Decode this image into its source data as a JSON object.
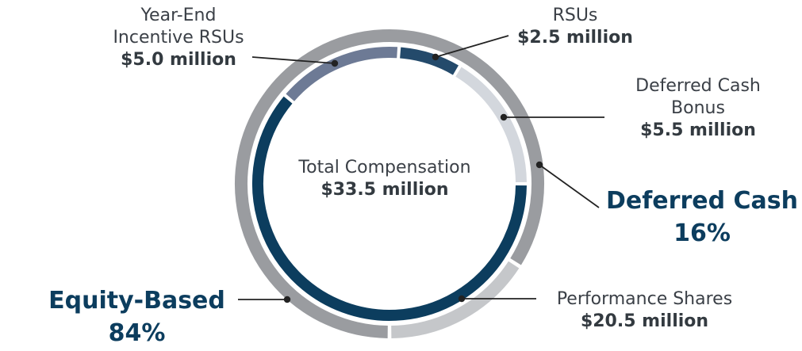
{
  "chart_data": {
    "type": "pie",
    "center": {
      "title": "Total Compensation",
      "total": "$33.5 million"
    },
    "inner_series": [
      {
        "name": "Performance Shares",
        "label": "$20.5 million",
        "value": 20.5,
        "color": "#0c3d5e"
      },
      {
        "name": "Year-End Incentive RSUs",
        "label": "$5.0 million",
        "value": 5.0,
        "color": "#6d7a95"
      },
      {
        "name": "RSUs",
        "label": "$2.5 million",
        "value": 2.5,
        "color": "#244a6b"
      },
      {
        "name": "Deferred Cash Bonus",
        "label": "$5.5 million",
        "value": 5.5,
        "color": "#d3d7dd"
      }
    ],
    "outer_series": [
      {
        "name": "Equity-Based",
        "percent": "84%",
        "value": 84,
        "color": "#9a9ca0"
      },
      {
        "name": "Deferred Cash",
        "percent": "16%",
        "value": 16,
        "color": "#c5c7ca"
      }
    ]
  },
  "labels": {
    "ye_rsu_line1": "Year-End",
    "ye_rsu_line2": "Incentive RSUs",
    "ye_rsu_value": "$5.0 million",
    "rsu_name": "RSUs",
    "rsu_value": "$2.5 million",
    "dcb_line1": "Deferred Cash",
    "dcb_line2": "Bonus",
    "dcb_value": "$5.5 million",
    "ps_name": "Performance Shares",
    "ps_value": "$20.5 million",
    "dc_name": "Deferred Cash",
    "dc_pct": "16%",
    "eq_name": "Equity-Based",
    "eq_pct": "84%"
  }
}
